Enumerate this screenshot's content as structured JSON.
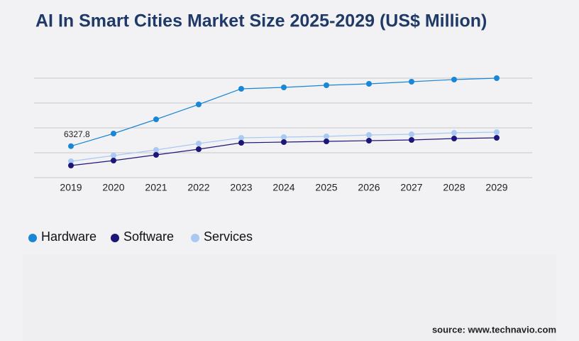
{
  "chart_data": {
    "type": "line",
    "title": "AI In Smart Cities Market Size 2025-2029 (US$ Million)",
    "source": "source: www.technavio.com",
    "x": [
      "2019",
      "2020",
      "2021",
      "2022",
      "2023",
      "2024",
      "2025",
      "2026",
      "2027",
      "2028",
      "2029"
    ],
    "series": [
      {
        "name": "Hardware",
        "color": "#1a86d6",
        "values": [
          6327.8,
          8857,
          11714,
          14714,
          17857,
          18143,
          18571,
          18857,
          19286,
          19714,
          20000
        ]
      },
      {
        "name": "Software",
        "color": "#1c1677",
        "values": [
          2429,
          3429,
          4571,
          5714,
          7000,
          7143,
          7286,
          7429,
          7571,
          7857,
          8000
        ]
      },
      {
        "name": "Services",
        "color": "#a9c9f2",
        "values": [
          3286,
          4429,
          5571,
          6857,
          8000,
          8143,
          8286,
          8571,
          8714,
          9000,
          9143
        ]
      }
    ],
    "ylim": [
      0,
      20000
    ],
    "yticks": [
      0,
      5000,
      10000,
      15000,
      20000
    ],
    "grid": true
  }
}
